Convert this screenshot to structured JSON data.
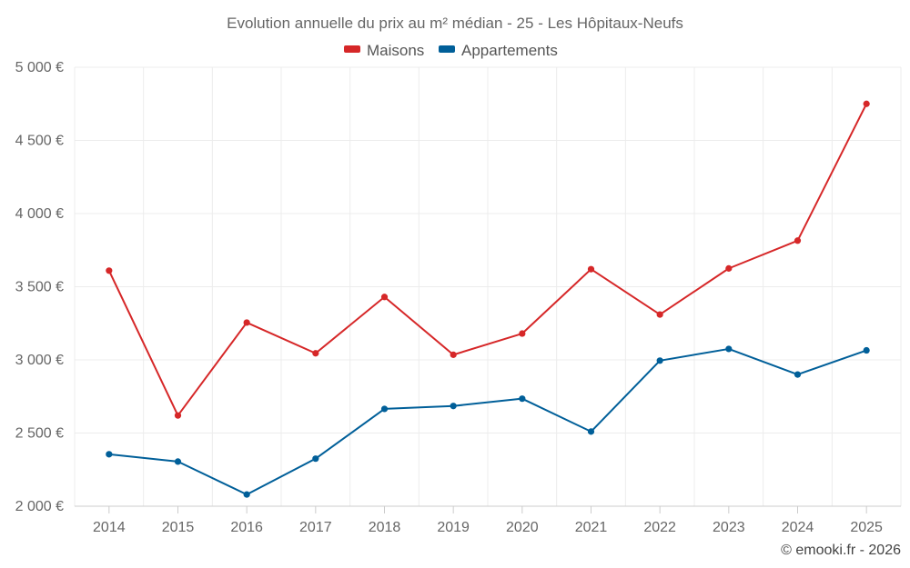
{
  "chart_data": {
    "type": "line",
    "title": "Evolution annuelle du prix au m² médian - 25 - Les Hôpitaux-Neufs",
    "xlabel": "",
    "ylabel": "",
    "categories": [
      "2014",
      "2015",
      "2016",
      "2017",
      "2018",
      "2019",
      "2020",
      "2021",
      "2022",
      "2023",
      "2024",
      "2025"
    ],
    "ylim": [
      2000,
      5000
    ],
    "yticks": [
      {
        "value": 2000,
        "label": "2 000 €"
      },
      {
        "value": 2500,
        "label": "2 500 €"
      },
      {
        "value": 3000,
        "label": "3 000 €"
      },
      {
        "value": 3500,
        "label": "3 500 €"
      },
      {
        "value": 4000,
        "label": "4 000 €"
      },
      {
        "value": 4500,
        "label": "4 500 €"
      },
      {
        "value": 5000,
        "label": "5 000 €"
      }
    ],
    "grid": true,
    "legend_position": "top-center",
    "series": [
      {
        "name": "Maisons",
        "color": "#d62728",
        "values": [
          3610,
          2620,
          3255,
          3045,
          3430,
          3035,
          3180,
          3620,
          3310,
          3625,
          3815,
          4750
        ]
      },
      {
        "name": "Appartements",
        "color": "#005f99",
        "values": [
          2355,
          2305,
          2080,
          2325,
          2665,
          2685,
          2735,
          2510,
          2995,
          3075,
          2900,
          3065
        ]
      }
    ],
    "credit": "© emooki.fr - 2026"
  }
}
